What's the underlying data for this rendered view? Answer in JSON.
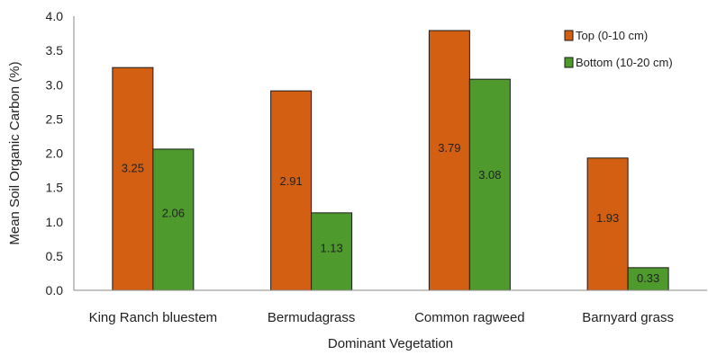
{
  "chart_data": {
    "type": "bar",
    "title": "",
    "xlabel": "Dominant Vegetation",
    "ylabel": "Mean Soil Organic Carbon (%)",
    "ylim": [
      0,
      4.0
    ],
    "yticks": [
      "0.0",
      "0.5",
      "1.0",
      "1.5",
      "2.0",
      "2.5",
      "3.0",
      "3.5",
      "4.0"
    ],
    "categories": [
      "King Ranch bluestem",
      "Bermudagrass",
      "Common ragweed",
      "Barnyard grass"
    ],
    "series": [
      {
        "name": "Top (0-10 cm)",
        "color": "#d35f12",
        "values": [
          3.25,
          2.91,
          3.79,
          1.93
        ],
        "labels": [
          "3.25",
          "2.91",
          "3.79",
          "1.93"
        ]
      },
      {
        "name": "Bottom (10-20 cm)",
        "color": "#4e9a2d",
        "values": [
          2.06,
          1.13,
          3.08,
          0.33
        ],
        "labels": [
          "2.06",
          "1.13",
          "3.08",
          "0.33"
        ]
      }
    ],
    "grid": false,
    "legend_position": "top-right"
  }
}
